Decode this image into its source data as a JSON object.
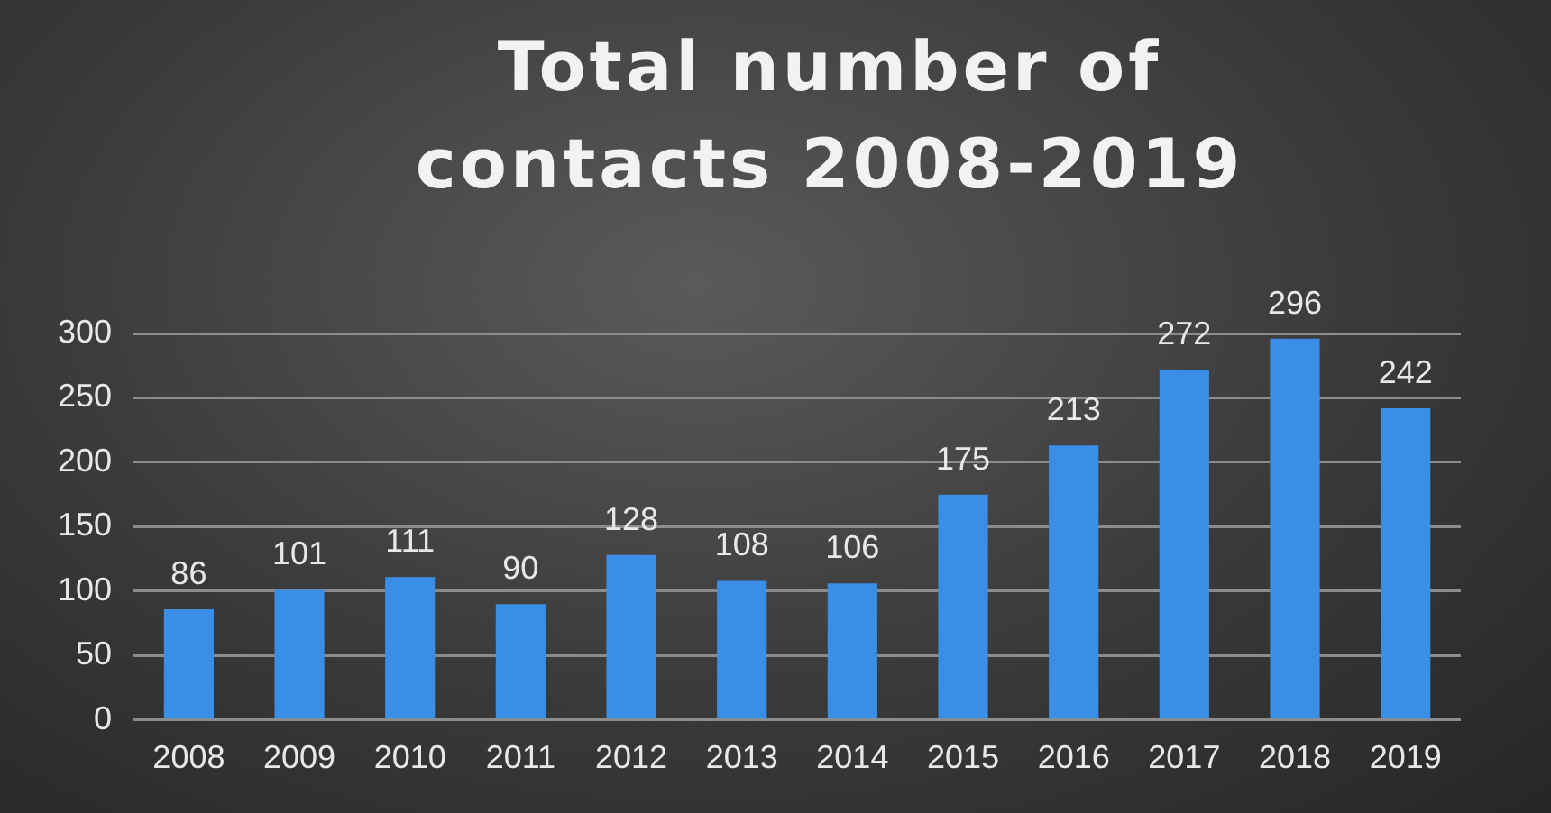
{
  "chart_data": {
    "type": "bar",
    "title": "Total number of contacts 2008-2019",
    "categories": [
      "2008",
      "2009",
      "2010",
      "2011",
      "2012",
      "2013",
      "2014",
      "2015",
      "2016",
      "2017",
      "2018",
      "2019"
    ],
    "values": [
      86,
      101,
      111,
      90,
      128,
      108,
      106,
      175,
      213,
      272,
      296,
      242
    ],
    "color": "#3a8ee6",
    "ylim": [
      0,
      300
    ],
    "yticks": [
      0,
      50,
      100,
      150,
      200,
      250,
      300
    ],
    "grid": "y",
    "data_labels": true,
    "legend": false
  }
}
